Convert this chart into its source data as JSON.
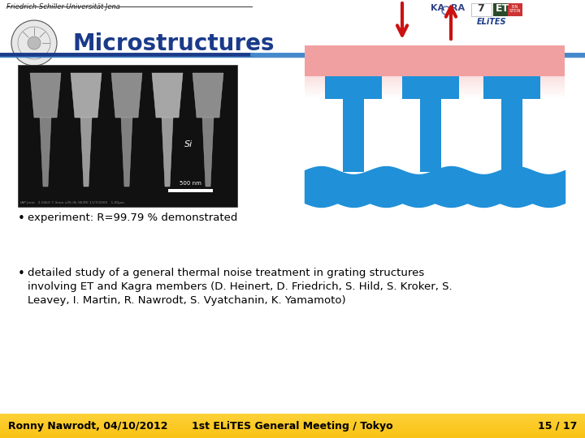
{
  "title": "Microstructures",
  "header_text": "Friedrich-Schiller-Universität Jena",
  "title_color": "#1a3a8a",
  "title_fontsize": 20,
  "bg_color": "#ffffff",
  "footer_left": "Ronny Nawrodt, 04/10/2012",
  "footer_center": "1st ELiTES General Meeting / Tokyo",
  "footer_right": "15 / 17",
  "footer_fontsize": 9,
  "bullet1": "experiment: R=99.79 % demonstrated",
  "bullet2_line1": "detailed study of a general thermal noise treatment in grating structures",
  "bullet2_line2": "involving ET and Kagra members (D. Heinert, D. Friedrich, S. Hild, S. Kroker, S.",
  "bullet2_line3": "Leavey, I. Martin, R. Nawrodt, S. Vyatchanin, K. Yamamoto)",
  "header_line_dark": "#1a3a8a",
  "header_line_light": "#4488cc",
  "blue_color": "#2090d8",
  "red_color": "#cc1111",
  "pink_color": "#f0a0a0",
  "footer_color1": [
    0.98,
    0.76,
    0.08
  ],
  "footer_color2": [
    0.99,
    0.82,
    0.22
  ]
}
